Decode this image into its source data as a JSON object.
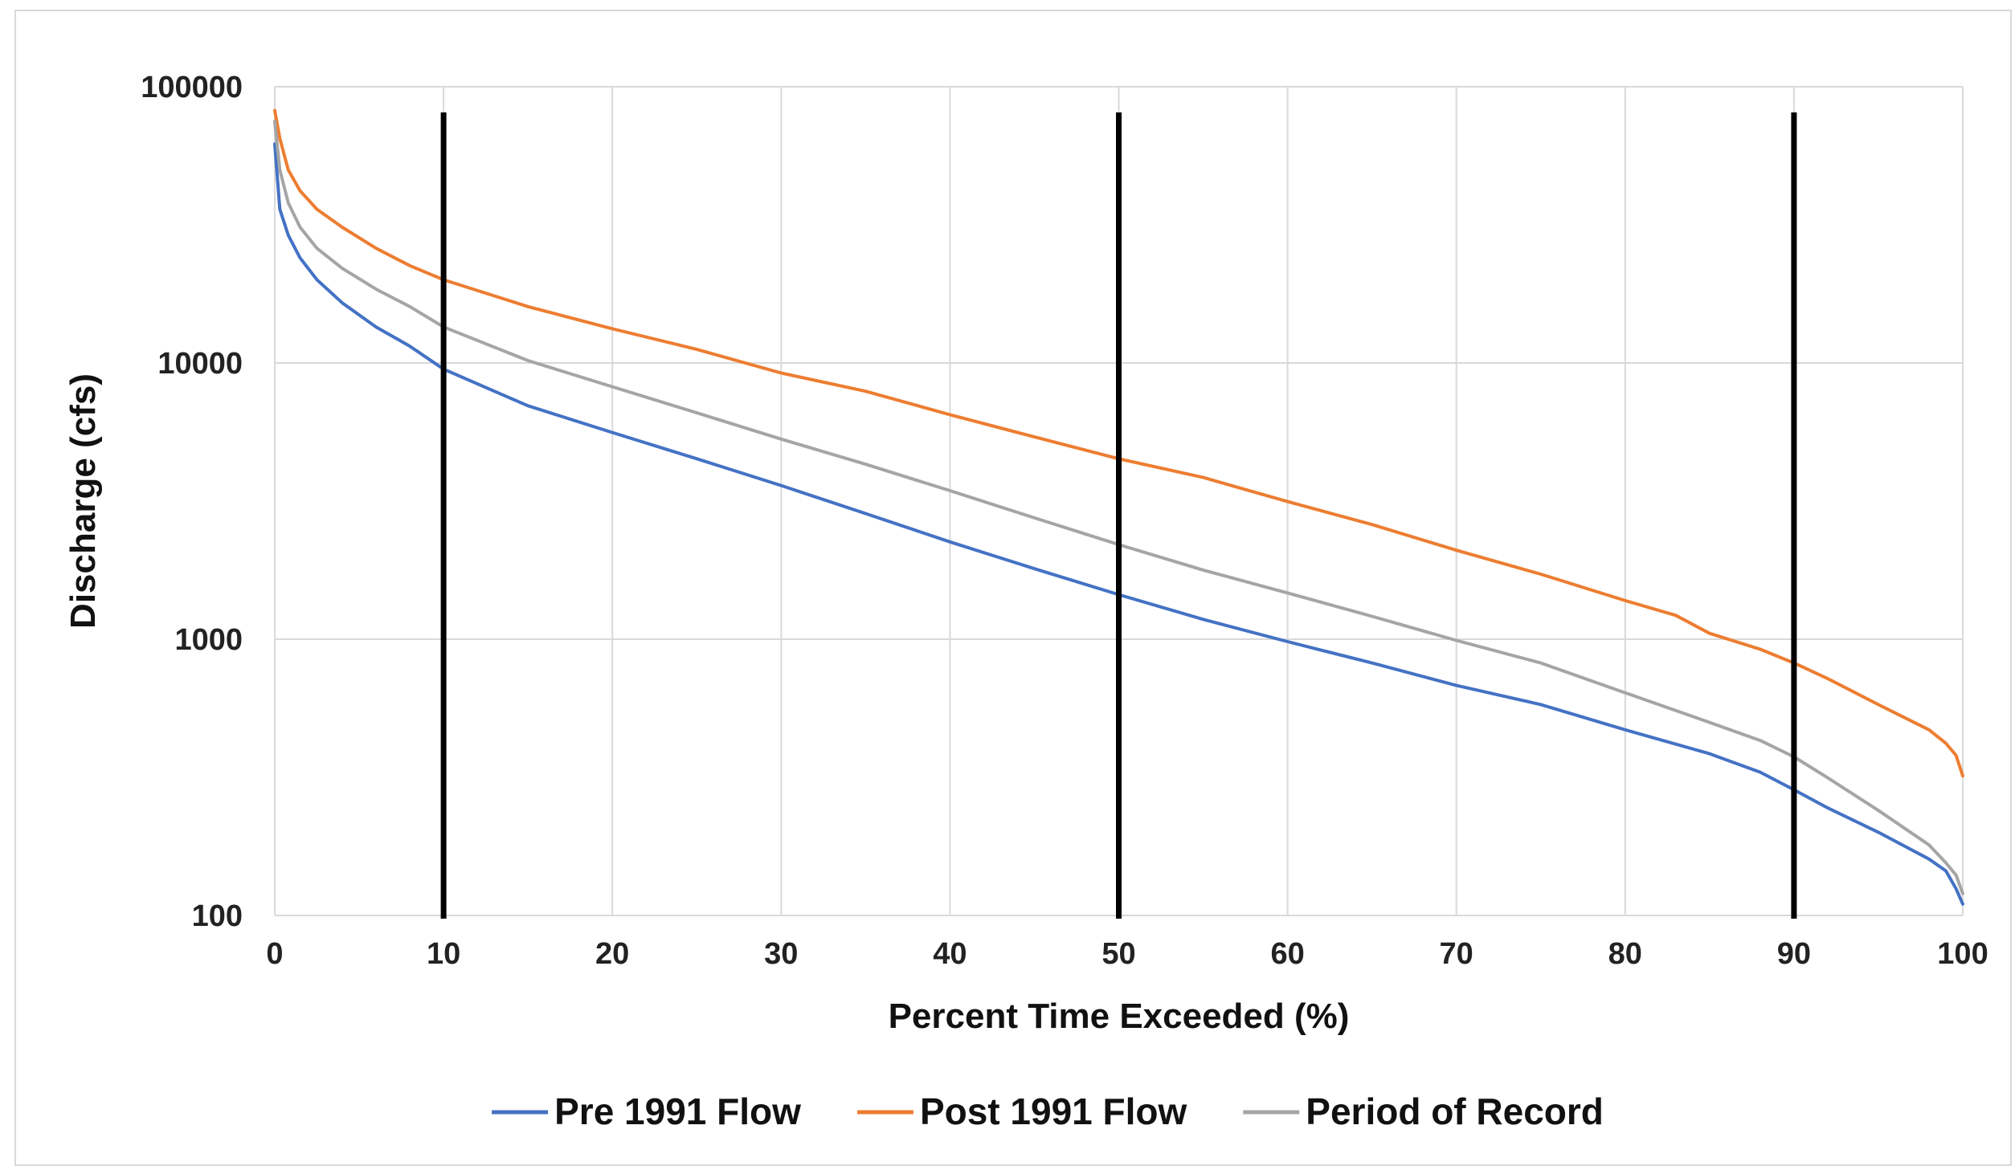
{
  "chart_data": {
    "type": "line",
    "title": "",
    "xlabel": "Percent Time Exceeded (%)",
    "ylabel": "Discharge (cfs)",
    "xlim": [
      0,
      100
    ],
    "ylim": [
      100,
      100000
    ],
    "yscale": "log",
    "grid": true,
    "legend_position": "bottom",
    "x_ticks": [
      "0",
      "10",
      "20",
      "30",
      "40",
      "50",
      "60",
      "70",
      "80",
      "90",
      "100"
    ],
    "y_ticks": [
      "100",
      "1000",
      "10000",
      "100000"
    ],
    "reference_lines_x": [
      10,
      50,
      90
    ],
    "reference_line_color": "#000000",
    "series": [
      {
        "name": "Pre 1991 Flow",
        "color": "#4472c4",
        "x": [
          0,
          0.3,
          0.8,
          1.5,
          2.5,
          4,
          6,
          8,
          10,
          15,
          20,
          25,
          30,
          35,
          40,
          45,
          50,
          55,
          60,
          65,
          70,
          75,
          80,
          85,
          88,
          90,
          92,
          95,
          98,
          99,
          99.6,
          100
        ],
        "y": [
          62000,
          36000,
          29000,
          24000,
          20000,
          16500,
          13500,
          11500,
          9500,
          7000,
          5600,
          4500,
          3600,
          2850,
          2250,
          1800,
          1450,
          1180,
          980,
          820,
          680,
          580,
          470,
          385,
          330,
          285,
          245,
          200,
          160,
          145,
          125,
          110
        ]
      },
      {
        "name": "Post 1991 Flow",
        "color": "#ed7d31",
        "x": [
          0,
          0.3,
          0.8,
          1.5,
          2.5,
          4,
          6,
          8,
          10,
          15,
          20,
          25,
          30,
          35,
          40,
          45,
          50,
          55,
          60,
          65,
          70,
          75,
          80,
          83,
          85,
          88,
          90,
          92,
          95,
          98,
          99,
          99.6,
          100
        ],
        "y": [
          82000,
          65000,
          50000,
          42000,
          36000,
          31000,
          26000,
          22500,
          20000,
          16000,
          13300,
          11200,
          9200,
          7900,
          6500,
          5400,
          4500,
          3850,
          3150,
          2600,
          2100,
          1720,
          1380,
          1220,
          1050,
          920,
          820,
          720,
          580,
          470,
          420,
          380,
          320
        ]
      },
      {
        "name": "Period of Record",
        "color": "#a5a5a5",
        "x": [
          0,
          0.3,
          0.8,
          1.5,
          2.5,
          4,
          6,
          8,
          10,
          15,
          20,
          25,
          30,
          35,
          40,
          45,
          50,
          55,
          60,
          65,
          70,
          75,
          80,
          85,
          88,
          90,
          92,
          95,
          98,
          99,
          99.6,
          100
        ],
        "y": [
          75000,
          50000,
          38000,
          31000,
          26000,
          22000,
          18500,
          16000,
          13500,
          10200,
          8200,
          6600,
          5300,
          4300,
          3450,
          2750,
          2200,
          1780,
          1470,
          1210,
          990,
          820,
          640,
          500,
          430,
          375,
          315,
          240,
          180,
          155,
          140,
          120
        ]
      }
    ]
  }
}
